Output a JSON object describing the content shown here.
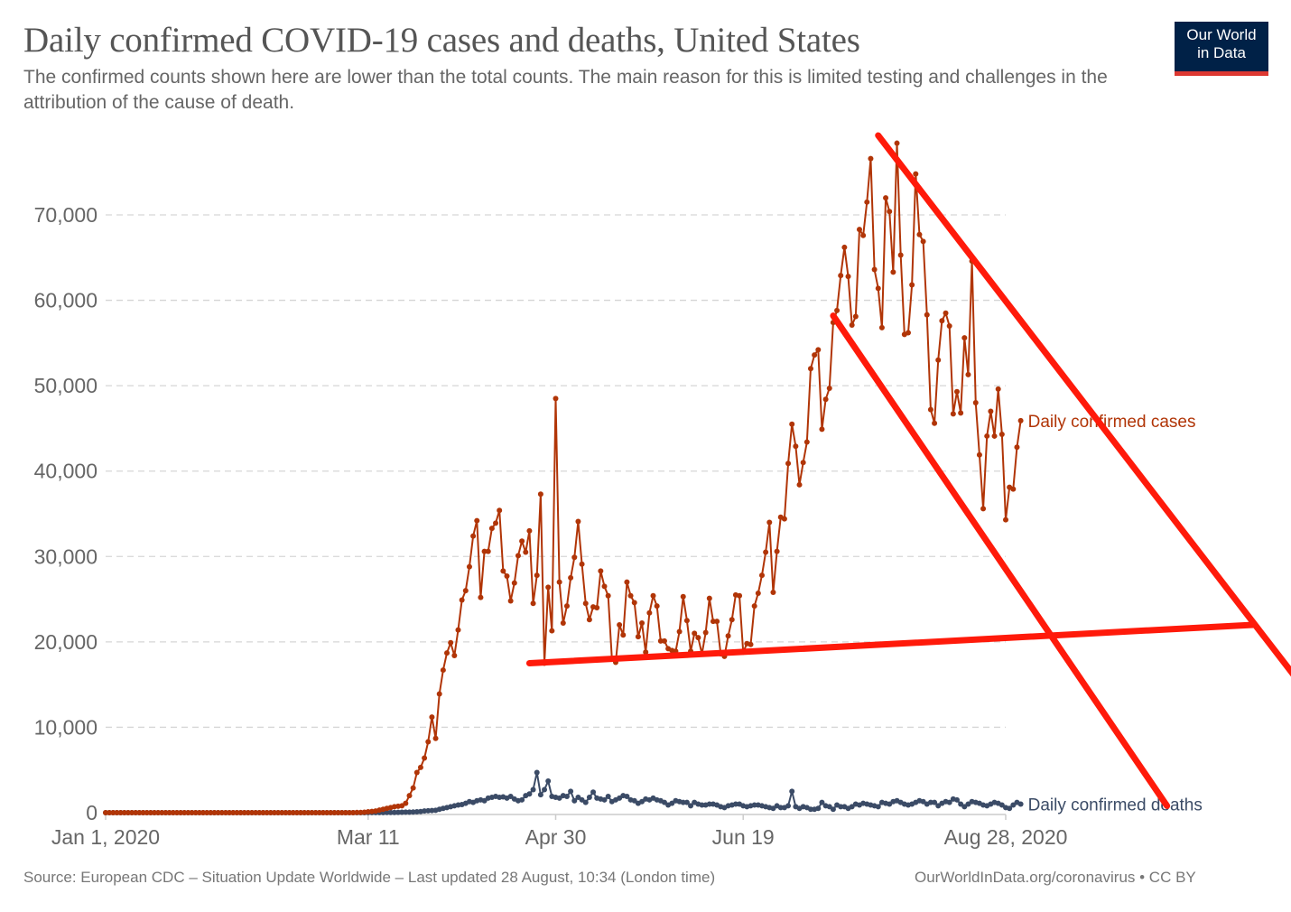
{
  "header": {
    "title": "Daily confirmed COVID-19 cases and deaths, United States",
    "subtitle": "The confirmed counts shown here are lower than the total counts. The main reason for this is limited testing and challenges in the attribution of the cause of death.",
    "logo_line1": "Our World",
    "logo_line2": "in Data"
  },
  "footer": {
    "source": "Source: European CDC – Situation Update Worldwide – Last updated 28 August, 10:34 (London time)",
    "credit": "OurWorldInData.org/coronavirus • CC BY"
  },
  "colors": {
    "cases": "#b13507",
    "deaths": "#3b4b66",
    "annotation": "#ff1a0a",
    "logo_bg": "#002147",
    "logo_accent": "#dd3831"
  },
  "chart_data": {
    "type": "line",
    "title": "Daily confirmed COVID-19 cases and deaths, United States",
    "xlabel": "",
    "ylabel": "",
    "x_start": "Jan 1, 2020",
    "x_end": "Aug 28, 2020",
    "x_days": 240,
    "x_ticks": [
      {
        "label": "Jan 1, 2020",
        "day": 0
      },
      {
        "label": "Mar 11",
        "day": 70
      },
      {
        "label": "Apr 30",
        "day": 120
      },
      {
        "label": "Jun 19",
        "day": 170
      },
      {
        "label": "Aug 28, 2020",
        "day": 240
      }
    ],
    "y_ticks": [
      {
        "label": "0",
        "value": 0
      },
      {
        "label": "10,000",
        "value": 10000
      },
      {
        "label": "20,000",
        "value": 20000
      },
      {
        "label": "30,000",
        "value": 30000
      },
      {
        "label": "40,000",
        "value": 40000
      },
      {
        "label": "50,000",
        "value": 50000
      },
      {
        "label": "60,000",
        "value": 60000
      },
      {
        "label": "70,000",
        "value": 70000
      }
    ],
    "ylim": [
      0,
      70000
    ],
    "grid": "horizontal dashed",
    "legend": "inline labels at right end of lines",
    "series": [
      {
        "name": "Daily confirmed cases",
        "color": "#b13507",
        "start_day": 0,
        "values": [
          0,
          0,
          0,
          0,
          0,
          0,
          0,
          0,
          0,
          0,
          0,
          0,
          0,
          0,
          0,
          0,
          0,
          0,
          0,
          0,
          0,
          0,
          0,
          0,
          0,
          0,
          0,
          0,
          0,
          0,
          0,
          0,
          0,
          0,
          0,
          0,
          0,
          0,
          0,
          0,
          0,
          0,
          0,
          0,
          0,
          0,
          0,
          0,
          0,
          0,
          0,
          0,
          0,
          0,
          0,
          0,
          0,
          0,
          0,
          0,
          0,
          0,
          0,
          0,
          0,
          0,
          0,
          20,
          30,
          50,
          100,
          150,
          200,
          300,
          400,
          500,
          600,
          700,
          750,
          800,
          1100,
          2000,
          2900,
          4700,
          5300,
          6400,
          8300,
          11200,
          8700,
          13900,
          16700,
          18700,
          19900,
          18400,
          21400,
          24900,
          26000,
          28800,
          32400,
          34200,
          25200,
          30600,
          30600,
          33300,
          33900,
          35400,
          28300,
          27700,
          24800,
          26900,
          30100,
          31800,
          30500,
          33000,
          24500,
          27800,
          37300,
          17500,
          26400,
          21300,
          48500,
          27000,
          22200,
          24200,
          27500,
          29900,
          34100,
          29100,
          24500,
          22600,
          24100,
          24000,
          28300,
          26500,
          25400,
          18000,
          17600,
          22000,
          20800,
          27000,
          25400,
          24600,
          20600,
          22200,
          18800,
          23400,
          25400,
          24200,
          20100,
          20100,
          19200,
          19000,
          18900,
          21200,
          25300,
          22500,
          18900,
          21000,
          20500,
          18600,
          21100,
          25100,
          22400,
          22400,
          18600,
          18300,
          20700,
          22600,
          25500,
          25400,
          18800,
          19800,
          19700,
          24200,
          25700,
          27800,
          30500,
          34000,
          25800,
          30600,
          34600,
          34400,
          40900,
          45500,
          42900,
          38400,
          41000,
          43400,
          52000,
          53600,
          54200,
          44900,
          48400,
          49700,
          57400,
          58800,
          62900,
          66200,
          62800,
          57100,
          58100,
          68300,
          67600,
          71500,
          76600,
          63600,
          61400,
          56800,
          72000,
          70400,
          63300,
          78400,
          65300,
          56000,
          56200,
          61800,
          74800,
          67700,
          66900,
          58300,
          47200,
          45600,
          53000,
          57600,
          58500,
          57000,
          46700,
          49300,
          46800,
          55600,
          51300,
          64600,
          48000,
          41900,
          35600,
          44100,
          47000,
          44100,
          49600,
          44300,
          34300,
          38100,
          37900,
          42800,
          45900
        ]
      },
      {
        "name": "Daily confirmed deaths",
        "color": "#3b4b66",
        "start_day": 0,
        "values": [
          0,
          0,
          0,
          0,
          0,
          0,
          0,
          0,
          0,
          0,
          0,
          0,
          0,
          0,
          0,
          0,
          0,
          0,
          0,
          0,
          0,
          0,
          0,
          0,
          0,
          0,
          0,
          0,
          0,
          0,
          0,
          0,
          0,
          0,
          0,
          0,
          0,
          0,
          0,
          0,
          0,
          0,
          0,
          0,
          0,
          0,
          0,
          0,
          0,
          0,
          0,
          0,
          0,
          0,
          0,
          0,
          0,
          0,
          0,
          0,
          0,
          0,
          0,
          0,
          0,
          0,
          0,
          0,
          0,
          0,
          10,
          10,
          10,
          10,
          10,
          20,
          20,
          30,
          40,
          50,
          60,
          70,
          80,
          100,
          130,
          200,
          220,
          250,
          280,
          400,
          500,
          600,
          700,
          800,
          900,
          950,
          1100,
          1300,
          1200,
          1400,
          1500,
          1400,
          1700,
          1800,
          1900,
          1800,
          1850,
          1700,
          1900,
          1600,
          1400,
          1500,
          2000,
          2200,
          2700,
          4700,
          2100,
          2700,
          3700,
          1900,
          1800,
          1700,
          2000,
          1900,
          2500,
          1400,
          1800,
          1500,
          1200,
          1800,
          2400,
          1700,
          1600,
          1500,
          1900,
          1300,
          1500,
          1700,
          2000,
          1900,
          1500,
          1400,
          1100,
          1300,
          1600,
          1500,
          1700,
          1500,
          1400,
          1200,
          900,
          1100,
          1400,
          1300,
          1200,
          1200,
          800,
          1200,
          1000,
          900,
          900,
          1000,
          1000,
          900,
          700,
          600,
          800,
          900,
          1000,
          1000,
          800,
          700,
          800,
          900,
          900,
          800,
          700,
          600,
          500,
          800,
          600,
          600,
          800,
          2500,
          700,
          500,
          700,
          600,
          400,
          400,
          500,
          1200,
          800,
          700,
          400,
          900,
          700,
          700,
          500,
          700,
          1000,
          900,
          1100,
          1000,
          900,
          800,
          700,
          1200,
          1100,
          1000,
          1300,
          1400,
          1200,
          1000,
          900,
          1000,
          1200,
          1400,
          1300,
          1000,
          1200,
          1200,
          800,
          1100,
          1300,
          1200,
          1600,
          1500,
          1000,
          700,
          1000,
          1300,
          1200,
          1100,
          900,
          800,
          1000,
          1200,
          1100,
          900,
          600,
          500,
          900,
          1200,
          1000
        ]
      }
    ],
    "annotations": [
      {
        "type": "drawn-line",
        "description": "support line (red)",
        "from": {
          "day": 113,
          "value": 17500
        },
        "to": {
          "day": 306,
          "value": 22000
        }
      },
      {
        "type": "drawn-line",
        "description": "upper descending channel (red)",
        "from": {
          "day": 206,
          "value": 79300
        },
        "to": {
          "day": 317,
          "value": 16000
        }
      },
      {
        "type": "drawn-line",
        "description": "lower descending channel (red)",
        "from": {
          "day": 194,
          "value": 58200
        },
        "to": {
          "day": 283,
          "value": 800
        }
      }
    ]
  }
}
